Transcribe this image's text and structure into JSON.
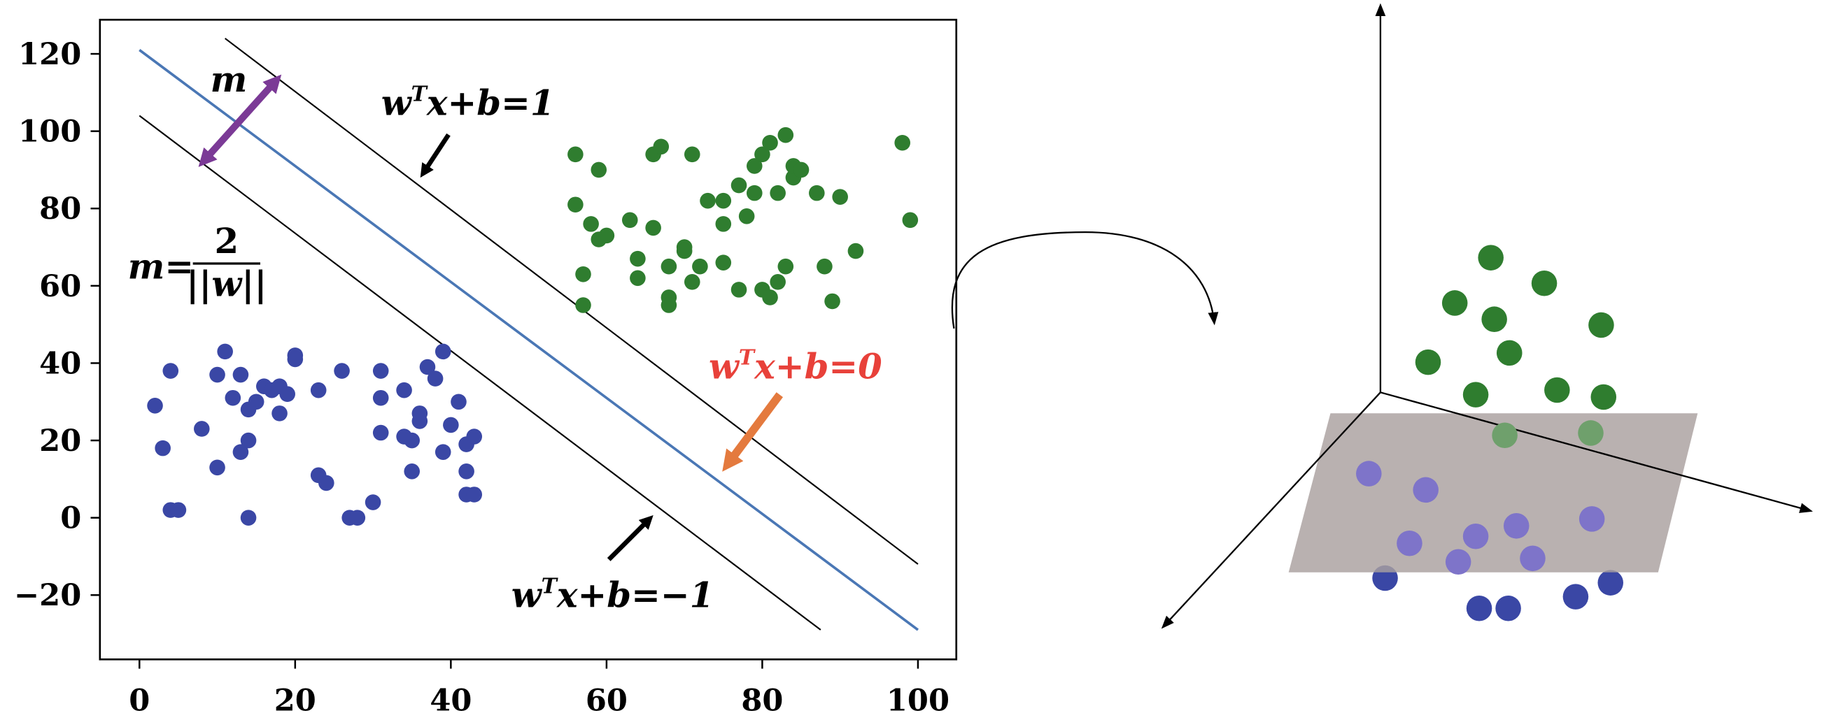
{
  "colors": {
    "class_a": "#3a47a5",
    "class_b": "#2f7d2f",
    "hyperplane": "#4a77b5",
    "margin_arrow": "#7b3a96",
    "hyperplane_arrow": "#e47a3e",
    "plane_fill": "#a9a09f",
    "class_a_lifted": "#7e74c9",
    "class_b_lifted": "#6fa06c"
  },
  "chart_data": {
    "type": "scatter",
    "xlim": [
      -5,
      105
    ],
    "ylim": [
      -35,
      128
    ],
    "x_ticks": [
      0,
      20,
      40,
      60,
      80,
      100
    ],
    "y_ticks": [
      -20,
      0,
      20,
      40,
      60,
      80,
      100,
      120
    ],
    "x_tick_labels": [
      "0",
      "20",
      "40",
      "60",
      "80",
      "100"
    ],
    "y_tick_labels": [
      "−20",
      "0",
      "20",
      "40",
      "60",
      "80",
      "100",
      "120"
    ],
    "series": [
      {
        "values": [
          [
            2,
            29
          ],
          [
            3,
            18
          ],
          [
            4,
            38
          ],
          [
            4,
            2
          ],
          [
            5,
            2
          ],
          [
            8,
            23
          ],
          [
            10,
            37
          ],
          [
            10,
            13
          ],
          [
            11,
            43
          ],
          [
            12,
            31
          ],
          [
            13,
            37
          ],
          [
            13,
            17
          ],
          [
            14,
            28
          ],
          [
            14,
            20
          ],
          [
            14,
            0
          ],
          [
            15,
            30
          ],
          [
            16,
            34
          ],
          [
            17,
            33
          ],
          [
            18,
            34
          ],
          [
            18,
            27
          ],
          [
            19,
            32
          ],
          [
            20,
            42
          ],
          [
            20,
            41
          ],
          [
            23,
            33
          ],
          [
            23,
            11
          ],
          [
            24,
            9
          ],
          [
            26,
            38
          ],
          [
            27,
            0
          ],
          [
            28,
            0
          ],
          [
            30,
            4
          ],
          [
            31,
            38
          ],
          [
            31,
            31
          ],
          [
            31,
            22
          ],
          [
            34,
            33
          ],
          [
            34,
            21
          ],
          [
            35,
            20
          ],
          [
            35,
            12
          ],
          [
            36,
            27
          ],
          [
            36,
            25
          ],
          [
            37,
            39
          ],
          [
            38,
            36
          ],
          [
            39,
            43
          ],
          [
            39,
            17
          ],
          [
            40,
            24
          ],
          [
            41,
            30
          ],
          [
            42,
            19
          ],
          [
            42,
            12
          ],
          [
            43,
            21
          ],
          [
            42,
            6
          ],
          [
            43,
            6
          ]
        ]
      },
      {
        "values": [
          [
            56,
            94
          ],
          [
            56,
            81
          ],
          [
            57,
            63
          ],
          [
            57,
            55
          ],
          [
            58,
            76
          ],
          [
            59,
            72
          ],
          [
            59,
            90
          ],
          [
            60,
            73
          ],
          [
            63,
            77
          ],
          [
            64,
            67
          ],
          [
            64,
            62
          ],
          [
            66,
            94
          ],
          [
            66,
            75
          ],
          [
            67,
            96
          ],
          [
            68,
            65
          ],
          [
            68,
            57
          ],
          [
            68,
            55
          ],
          [
            70,
            70
          ],
          [
            70,
            69
          ],
          [
            71,
            94
          ],
          [
            71,
            61
          ],
          [
            72,
            65
          ],
          [
            73,
            82
          ],
          [
            75,
            82
          ],
          [
            75,
            76
          ],
          [
            75,
            66
          ],
          [
            77,
            86
          ],
          [
            77,
            59
          ],
          [
            78,
            78
          ],
          [
            79,
            91
          ],
          [
            79,
            84
          ],
          [
            80,
            94
          ],
          [
            80,
            59
          ],
          [
            81,
            97
          ],
          [
            81,
            57
          ],
          [
            82,
            84
          ],
          [
            82,
            61
          ],
          [
            83,
            99
          ],
          [
            83,
            65
          ],
          [
            84,
            88
          ],
          [
            84,
            91
          ],
          [
            85,
            90
          ],
          [
            87,
            84
          ],
          [
            88,
            65
          ],
          [
            89,
            56
          ],
          [
            90,
            83
          ],
          [
            92,
            69
          ],
          [
            98,
            97
          ],
          [
            99,
            77
          ]
        ]
      }
    ],
    "lines": [
      {
        "role": "hyperplane",
        "x": [
          0,
          100
        ],
        "y": [
          121,
          -29
        ]
      },
      {
        "role": "margin_upper",
        "x": [
          11,
          100
        ],
        "y": [
          124,
          -12
        ]
      },
      {
        "role": "margin_lower",
        "x": [
          0,
          87.5
        ],
        "y": [
          104,
          -29
        ]
      }
    ]
  },
  "annotations": {
    "margin_symbol": "m",
    "margin_formula_lhs": "m=",
    "margin_formula_numerator": "2",
    "margin_formula_denominator": "||w||",
    "eq_upper": {
      "w": "w",
      "sup": "T",
      "rest": "x+b=1"
    },
    "eq_center": {
      "w": "w",
      "sup": "T",
      "rest": "x+b=0"
    },
    "eq_lower": {
      "w": "w",
      "sup": "T",
      "rest": "x+b=−1"
    }
  },
  "lifted_points": {
    "green": [
      [
        1283,
        222
      ],
      [
        1329,
        244
      ],
      [
        1252,
        261
      ],
      [
        1286,
        275
      ],
      [
        1378,
        280
      ],
      [
        1299,
        304
      ],
      [
        1229,
        312
      ],
      [
        1270,
        340
      ],
      [
        1340,
        336
      ],
      [
        1380,
        342
      ]
    ],
    "green_faded": [
      [
        1295,
        375
      ],
      [
        1369,
        373
      ]
    ],
    "blue_faded": [
      [
        1178,
        408
      ],
      [
        1227,
        422
      ],
      [
        1305,
        453
      ],
      [
        1370,
        447
      ],
      [
        1213,
        468
      ],
      [
        1270,
        462
      ],
      [
        1319,
        481
      ],
      [
        1255,
        484
      ]
    ],
    "blue": [
      [
        1192,
        498
      ],
      [
        1273,
        524
      ],
      [
        1298,
        524
      ],
      [
        1356,
        514
      ],
      [
        1386,
        502
      ]
    ]
  }
}
